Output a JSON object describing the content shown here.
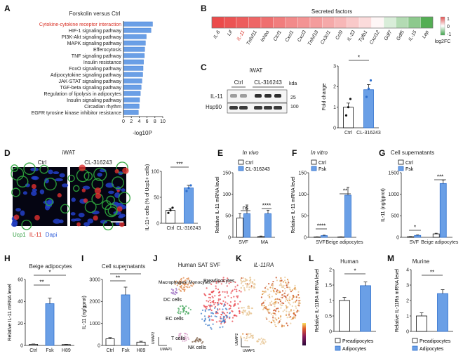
{
  "panel_letters": [
    "A",
    "B",
    "C",
    "D",
    "E",
    "F",
    "G",
    "H",
    "I",
    "J",
    "K",
    "L",
    "M"
  ],
  "colors": {
    "blue": "#6a9fe6",
    "blue_edge": "#2e6fce",
    "black": "#111111",
    "red": "#d93025",
    "green": "#3cb04a"
  },
  "A": {
    "title": "Forskolin versus Ctrl",
    "xlabel": "-log10P",
    "highlight_index": 0,
    "chart_data": {
      "type": "bar",
      "orientation": "horizontal",
      "title": "Forskolin versus Ctrl",
      "xlabel": "-log10P",
      "xlim": [
        0,
        10
      ],
      "xticks": [
        0,
        2,
        4,
        6,
        8,
        10
      ],
      "categories": [
        "Cytokine-cytokine receptor interaction",
        "HIF-1 signaling pathway",
        "PI3K-Akt signaling pathway",
        "MAPK signaling pathway",
        "Efferocytosis",
        "TNF signaling pathway",
        "Insulin resistance",
        "FoxO signaling pathway",
        "Adipocytokine signaling pathway",
        "JAK-STAT signaling pathway",
        "TGF-beta signaling pathway",
        "Regulation of lipolysis in adipocytes",
        "Insulin signaling pathway",
        "Circadian rhythm",
        "EGFR tyrosine kinase inhibitor resistance"
      ],
      "values": [
        7.4,
        7.0,
        5.8,
        5.6,
        5.4,
        5.3,
        5.1,
        5.0,
        4.9,
        4.7,
        4.5,
        4.3,
        4.1,
        4.0,
        3.8
      ]
    }
  },
  "B": {
    "title": "Secreted factors",
    "legend_ticks": [
      "1",
      "0",
      "-1"
    ],
    "legend_label": "log2FC",
    "chart_data": {
      "type": "heatmap",
      "categories": [
        "IL-6",
        "Lif",
        "IL-11",
        "Tnfsf11",
        "Inhba",
        "Clcf1",
        "Cxcl1",
        "Cxcl3",
        "Tnfsf18",
        "Cx3cl1",
        "Ccl9",
        "IL-33",
        "Tgfb1",
        "Cxcl12",
        "Gdf7",
        "Gdf5",
        "IL-15",
        "Lep"
      ],
      "values": [
        1.0,
        0.95,
        0.9,
        0.85,
        0.8,
        0.72,
        0.65,
        0.6,
        0.55,
        0.48,
        0.4,
        0.3,
        0.2,
        0.05,
        -0.2,
        -0.4,
        -0.6,
        -0.9
      ],
      "highlight_index": 2
    }
  },
  "C": {
    "tissue": "iWAT",
    "kda": "kda",
    "groups": [
      "Ctrl",
      "CL-316243"
    ],
    "blot_rows": [
      "IL-11",
      "Hsp90"
    ],
    "markers": [
      "25",
      "100"
    ],
    "sig": "*",
    "chart_data": {
      "type": "bar",
      "ylabel": "Fold change",
      "ylim": [
        0,
        3
      ],
      "yticks": [
        0,
        1,
        2,
        3
      ],
      "categories": [
        "Ctrl",
        "CL-316243"
      ],
      "values": [
        1.0,
        1.85
      ],
      "errors": [
        0.2,
        0.25
      ],
      "points": [
        [
          0.6,
          1.0,
          1.4
        ],
        [
          1.5,
          1.9,
          2.3
        ]
      ]
    }
  },
  "D": {
    "tissue": "iWAT",
    "groups": [
      "Ctrl",
      "CL-316243"
    ],
    "stain_green": "Ucp1",
    "stain_red": "IL-11",
    "stain_blue": "Dapi",
    "sig": "***",
    "chart_data": {
      "type": "bar",
      "ylabel": "IL-11+ cells (% of Ucp1+ cells)",
      "ylim": [
        0,
        100
      ],
      "yticks": [
        0,
        50,
        100
      ],
      "categories": [
        "Ctrl",
        "CL-316243"
      ],
      "values": [
        25,
        68
      ],
      "errors": [
        4,
        5
      ],
      "points": [
        [
          20,
          25,
          30
        ],
        [
          62,
          68,
          73
        ]
      ]
    }
  },
  "E": {
    "subtitle": "In vivo",
    "legend": [
      "Ctrl",
      "CL-316243"
    ],
    "sigs": [
      "ns",
      "****"
    ],
    "chart_data": {
      "type": "bar",
      "ylabel": "Relative IL-11 mRNA level",
      "ylim": [
        0,
        150
      ],
      "yticks": [
        0,
        50,
        100,
        150
      ],
      "categories": [
        "SVF",
        "MA"
      ],
      "series": [
        {
          "name": "Ctrl",
          "values": [
            45,
            2
          ],
          "errors": [
            10,
            1
          ]
        },
        {
          "name": "CL-316243",
          "values": [
            55,
            55
          ],
          "errors": [
            20,
            8
          ]
        }
      ]
    }
  },
  "F": {
    "subtitle": "In vitro",
    "legend": [
      "Ctrl",
      "Fsk"
    ],
    "sigs": [
      "****",
      "**"
    ],
    "chart_data": {
      "type": "bar",
      "ylabel": "Relative IL-11 mRNA level",
      "ylim": [
        0,
        150
      ],
      "yticks": [
        0,
        50,
        100,
        150
      ],
      "categories": [
        "SVF",
        "Beige adipocytes"
      ],
      "series": [
        {
          "name": "Ctrl",
          "values": [
            1,
            1
          ],
          "errors": [
            0.3,
            0.3
          ]
        },
        {
          "name": "Fsk",
          "values": [
            4,
            98
          ],
          "errors": [
            1,
            18
          ]
        }
      ]
    }
  },
  "G": {
    "subtitle": "Cell supernatants",
    "legend": [
      "Ctrl",
      "Fsk"
    ],
    "sigs": [
      "*",
      "***"
    ],
    "chart_data": {
      "type": "bar",
      "ylabel": "IL-11 (ng/gprot)",
      "ylim": [
        0,
        1500
      ],
      "yticks": [
        0,
        500,
        1000,
        1500
      ],
      "categories": [
        "SVF",
        "Beige adipocytes"
      ],
      "series": [
        {
          "name": "Ctrl",
          "values": [
            15,
            80
          ],
          "errors": [
            5,
            15
          ]
        },
        {
          "name": "Fsk",
          "values": [
            45,
            1250
          ],
          "errors": [
            10,
            80
          ]
        }
      ]
    }
  },
  "H": {
    "subtitle": "Beige adipocytes",
    "sigs": [
      "**",
      "*"
    ],
    "chart_data": {
      "type": "bar",
      "ylabel": "Relative IL-11 mRNA level",
      "ylim": [
        0,
        60
      ],
      "yticks": [
        0,
        20,
        40,
        60
      ],
      "categories": [
        "Ctrl",
        "Fsk",
        "H89"
      ],
      "values": [
        1,
        38,
        0.8
      ],
      "errors": [
        0.3,
        5,
        0.2
      ]
    }
  },
  "I": {
    "subtitle": "Cell supernatants",
    "sigs": [
      "**",
      "*"
    ],
    "chart_data": {
      "type": "bar",
      "ylabel": "IL-11 (ng/gprot)",
      "ylim": [
        0,
        3000
      ],
      "yticks": [
        0,
        1000,
        2000,
        3000
      ],
      "categories": [
        "Ctrl",
        "Fsk",
        "H89"
      ],
      "values": [
        300,
        2300,
        150
      ],
      "errors": [
        60,
        350,
        40
      ]
    }
  },
  "J": {
    "title": "Human SAT SVF",
    "clusters": [
      "Macrophages/ Monocytes",
      "Preadipocytes",
      "DC cells",
      "EC cells",
      "T cells",
      "NK cells"
    ],
    "xaxis": "UMAP1",
    "yaxis": "UMAP2"
  },
  "K": {
    "title": "IL-11RA",
    "xaxis": "UMAP1",
    "yaxis": "UMAP2"
  },
  "L": {
    "subtitle": "Human",
    "sig": "*",
    "legend": [
      "Preadipocytes",
      "Adipocytes"
    ],
    "chart_data": {
      "type": "bar",
      "ylabel": "Relative IL-11RA mRNA level",
      "ylim": [
        0,
        2
      ],
      "yticks": [
        0.0,
        0.5,
        1.0,
        1.5,
        2.0
      ],
      "categories": [
        "Preadipocytes",
        "Adipocytes"
      ],
      "values": [
        1.0,
        1.48
      ],
      "errors": [
        0.1,
        0.12
      ]
    }
  },
  "M": {
    "subtitle": "Murine",
    "sig": "**",
    "legend": [
      "Preadipocytes",
      "Adipocytes"
    ],
    "chart_data": {
      "type": "bar",
      "ylabel": "Relative IL-11Ra mRNA level",
      "ylim": [
        0,
        4
      ],
      "yticks": [
        0,
        1,
        2,
        3,
        4
      ],
      "categories": [
        "Preadipocytes",
        "Adipocytes"
      ],
      "values": [
        1.0,
        2.45
      ],
      "errors": [
        0.2,
        0.25
      ]
    }
  }
}
